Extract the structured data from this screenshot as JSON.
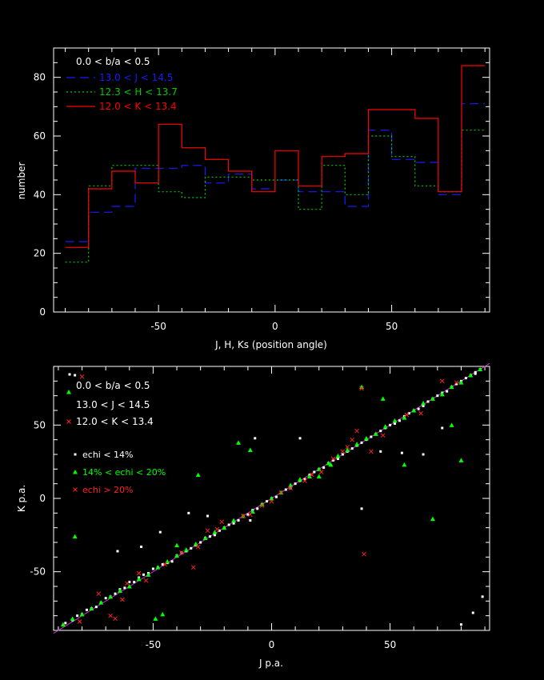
{
  "chart_data": [
    {
      "type": "line",
      "style": "step",
      "xlabel": "J, H, Ks (position angle)",
      "ylabel": "number",
      "xlim": [
        -95,
        92
      ],
      "ylim": [
        0,
        90
      ],
      "xticks": [
        -50,
        0,
        50
      ],
      "yticks": [
        0,
        20,
        40,
        60,
        80
      ],
      "bin_edges": [
        -90,
        -80,
        -70,
        -60,
        -50,
        -40,
        -30,
        -20,
        -10,
        0,
        10,
        20,
        30,
        40,
        50,
        60,
        70,
        80,
        90
      ],
      "legend_title": "0.0 < b/a < 0.5",
      "legend_position": "top-left",
      "series": [
        {
          "name": "13.0 < J < 14.5",
          "color": "#1a1aff",
          "dash": "long-dash",
          "values": [
            24,
            34,
            36,
            49,
            49,
            50,
            44,
            47,
            42,
            45,
            41,
            41,
            36,
            62,
            52,
            51,
            40,
            71
          ]
        },
        {
          "name": "12.3 < H < 13.7",
          "color": "#00cc00",
          "dash": "dotted",
          "values": [
            17,
            43,
            50,
            50,
            41,
            39,
            46,
            46,
            45,
            45,
            35,
            50,
            40,
            60,
            53,
            43,
            41,
            62
          ]
        },
        {
          "name": "12.0 < K < 13.4",
          "color": "#ff0000",
          "dash": "solid",
          "values": [
            22,
            42,
            48,
            44,
            64,
            56,
            52,
            48,
            41,
            55,
            43,
            53,
            54,
            69,
            69,
            66,
            41,
            84
          ]
        }
      ]
    },
    {
      "type": "scatter",
      "xlabel": "J p.a.",
      "ylabel": "K p.a.",
      "xlim": [
        -92,
        92
      ],
      "ylim": [
        -90,
        90
      ],
      "xticks": [
        -50,
        0,
        50
      ],
      "yticks": [
        -50,
        0,
        50
      ],
      "legend": {
        "lines": [
          "0.0 < b/a < 0.5",
          "13.0 < J < 14.5",
          "12.0 < K < 13.4"
        ],
        "markers": [
          {
            "label": "echi < 14%",
            "color": "#ffffff",
            "marker": "square"
          },
          {
            "label": "14% < echi < 20%",
            "color": "#00ff00",
            "marker": "triangle"
          },
          {
            "label": "echi > 20%",
            "color": "#ff2020",
            "marker": "cross"
          }
        ]
      },
      "reference_line": {
        "x": [
          -92,
          92
        ],
        "y": [
          -92,
          92
        ],
        "color": "#cc33cc"
      },
      "series": [
        {
          "name": "echi < 14%",
          "marker": "square",
          "color": "#ffffff",
          "x": [
            -87,
            -84,
            -82,
            -80,
            -78,
            -76,
            -74,
            -72,
            -70,
            -68,
            -66,
            -64,
            -62,
            -60,
            -58,
            -56,
            -54,
            -52,
            -50,
            -48,
            -46,
            -44,
            -42,
            -40,
            -38,
            -36,
            -34,
            -32,
            -30,
            -28,
            -26,
            -24,
            -22,
            -20,
            -18,
            -16,
            -14,
            -12,
            -10,
            -8,
            -6,
            -4,
            -2,
            0,
            2,
            4,
            6,
            8,
            10,
            12,
            14,
            16,
            18,
            20,
            22,
            24,
            26,
            28,
            30,
            32,
            34,
            36,
            38,
            40,
            42,
            44,
            46,
            48,
            50,
            52,
            54,
            56,
            58,
            60,
            62,
            64,
            66,
            68,
            70,
            72,
            74,
            76,
            78,
            80,
            82,
            84,
            86,
            88,
            -83,
            -65,
            -55,
            -47,
            -35,
            -27,
            -9,
            -7,
            12,
            38,
            46,
            55,
            64,
            72,
            86,
            89,
            80,
            85
          ],
          "y": [
            -85,
            -83,
            -80,
            -79,
            -76,
            -75,
            -74,
            -71,
            -68,
            -67,
            -65,
            -62,
            -61,
            -57,
            -57,
            -54,
            -52,
            -51,
            -48,
            -47,
            -45,
            -44,
            -43,
            -39,
            -37,
            -36,
            -34,
            -32,
            -30,
            -27,
            -26,
            -25,
            -22,
            -20,
            -18,
            -17,
            -15,
            -12,
            -11,
            -8,
            -7,
            -4,
            -2,
            0,
            1,
            4,
            6,
            7,
            10,
            12,
            13,
            16,
            18,
            20,
            21,
            24,
            26,
            27,
            30,
            32,
            34,
            36,
            38,
            40,
            42,
            44,
            46,
            48,
            50,
            51,
            53,
            56,
            58,
            60,
            61,
            63,
            66,
            68,
            70,
            72,
            73,
            76,
            78,
            80,
            82,
            84,
            86,
            88,
            84,
            -36,
            -33,
            -23,
            -10,
            -12,
            -15,
            41,
            41,
            -7,
            32,
            31,
            30,
            48,
            85,
            -67,
            -86,
            -78
          ]
        },
        {
          "name": "14% < echi < 20%",
          "marker": "triangle",
          "color": "#00ff00",
          "x": [
            -88,
            -84,
            -80,
            -76,
            -72,
            -68,
            -64,
            -60,
            -56,
            -52,
            -48,
            -44,
            -40,
            -36,
            -32,
            -28,
            -24,
            -20,
            -16,
            -12,
            -8,
            -4,
            0,
            4,
            8,
            12,
            16,
            20,
            24,
            28,
            32,
            36,
            40,
            44,
            48,
            52,
            56,
            60,
            64,
            68,
            72,
            76,
            80,
            84,
            88,
            -83,
            -49,
            -46,
            -31,
            -14,
            -9,
            20,
            25,
            38,
            47,
            56,
            68,
            80,
            76,
            -40
          ],
          "y": [
            -86,
            -82,
            -79,
            -75,
            -71,
            -67,
            -63,
            -60,
            -55,
            -52,
            -47,
            -43,
            -39,
            -35,
            -31,
            -27,
            -23,
            -20,
            -15,
            -12,
            -9,
            -4,
            0,
            4,
            9,
            13,
            15,
            20,
            24,
            29,
            33,
            37,
            41,
            44,
            49,
            53,
            55,
            60,
            65,
            68,
            71,
            76,
            79,
            84,
            88,
            -26,
            -82,
            -79,
            16,
            38,
            33,
            15,
            23,
            76,
            68,
            23,
            -14,
            26,
            50,
            -32
          ]
        },
        {
          "name": "echi > 20%",
          "marker": "cross",
          "color": "#ff2020",
          "x": [
            -81,
            -73,
            -68,
            -66,
            -63,
            -61,
            -56,
            -53,
            -45,
            -33,
            -31,
            -27,
            -23,
            -21,
            -9,
            -4,
            0,
            4,
            8,
            14,
            17,
            21,
            26,
            30,
            32,
            34,
            36,
            38,
            39,
            42,
            47,
            57,
            63,
            72,
            78,
            -80,
            -12,
            -38
          ],
          "y": [
            -84,
            -65,
            -80,
            -82,
            -69,
            -58,
            -51,
            -56,
            -45,
            -47,
            -33,
            -22,
            -21,
            -16,
            -11,
            -5,
            -2,
            4,
            7,
            12,
            16,
            18,
            27,
            32,
            35,
            40,
            46,
            75,
            -38,
            32,
            43,
            57,
            58,
            80,
            79,
            83,
            -12,
            -37
          ]
        }
      ]
    }
  ]
}
